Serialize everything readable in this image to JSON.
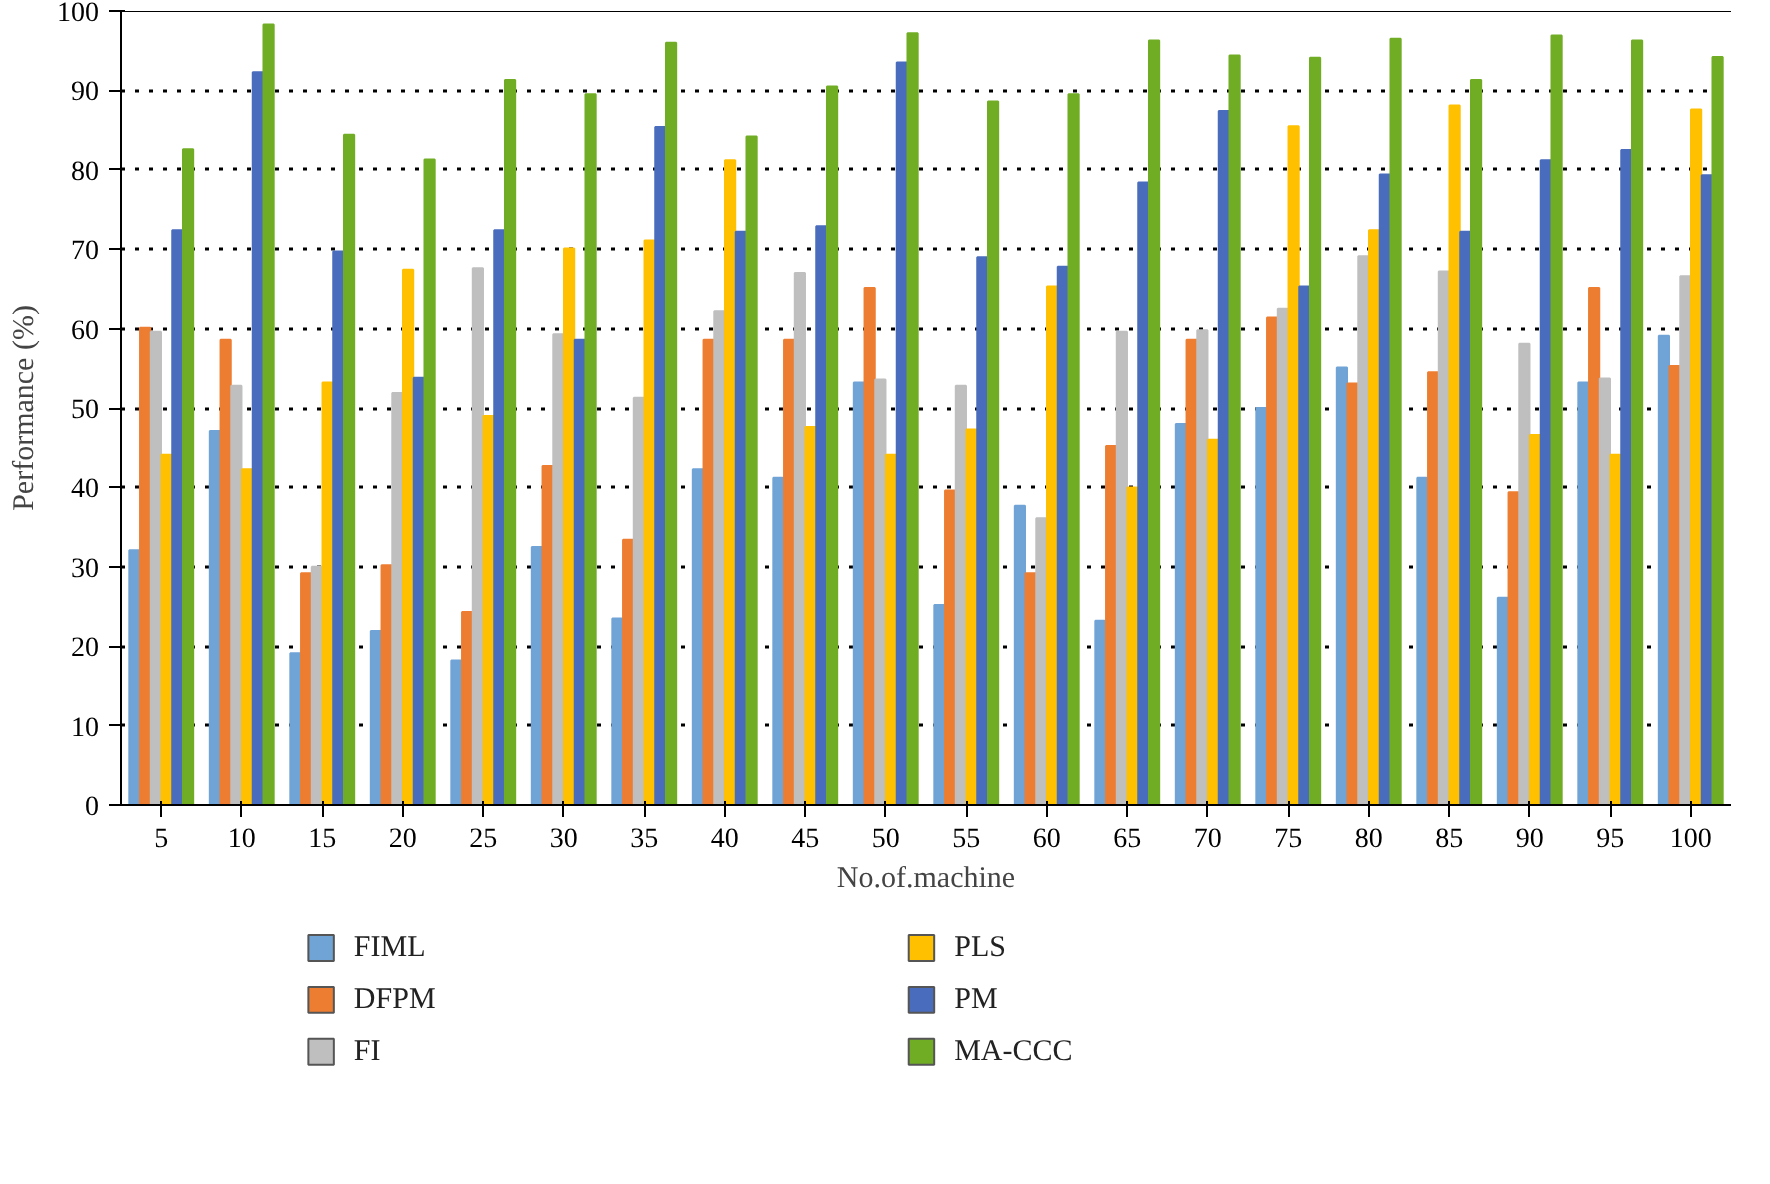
{
  "chart_data": {
    "type": "bar",
    "xlabel": "No.of.machine",
    "ylabel": "Performance (%)",
    "categories": [
      "5",
      "10",
      "15",
      "20",
      "25",
      "30",
      "35",
      "40",
      "45",
      "50",
      "55",
      "60",
      "65",
      "70",
      "75",
      "80",
      "85",
      "90",
      "95",
      "100"
    ],
    "ylim": [
      0,
      100
    ],
    "yticks": [
      0,
      10,
      20,
      30,
      40,
      50,
      60,
      70,
      80,
      90,
      100
    ],
    "grid": "y",
    "legend": "bottom",
    "series": [
      {
        "name": "FIML",
        "color": "#70a3d6",
        "values": [
          32.1,
          47.1,
          19.1,
          21.9,
          18.2,
          32.5,
          23.5,
          42.3,
          41.2,
          53.2,
          25.2,
          37.7,
          23.2,
          48,
          50,
          55.1,
          41.2,
          26.1,
          53.2,
          59.1
        ]
      },
      {
        "name": "DFPM",
        "color": "#ed7d31",
        "values": [
          60.1,
          58.6,
          29.2,
          30.2,
          24.3,
          42.7,
          33.4,
          58.6,
          58.6,
          65.1,
          39.6,
          29.2,
          45.2,
          58.6,
          61.4,
          53.1,
          54.5,
          39.4,
          65.1,
          55.3
        ]
      },
      {
        "name": "FI",
        "color": "#bfbfbf",
        "values": [
          59.6,
          52.8,
          30,
          51.9,
          67.6,
          59.3,
          51.3,
          62.2,
          67,
          53.6,
          52.8,
          36.1,
          59.6,
          59.8,
          62.5,
          69.1,
          67.2,
          58.1,
          53.7,
          66.6
        ]
      },
      {
        "name": "PLS",
        "color": "#ffc000",
        "values": [
          44.1,
          42.3,
          53.2,
          67.4,
          49,
          70.1,
          71.1,
          81.2,
          47.6,
          44.1,
          47.3,
          65.3,
          40,
          46,
          85.5,
          72.4,
          88.1,
          46.6,
          44.1,
          87.6
        ]
      },
      {
        "name": "PM",
        "color": "#4a6cbd",
        "values": [
          72.4,
          92.3,
          69.7,
          53.8,
          72.4,
          58.6,
          85.4,
          72.2,
          72.9,
          93.5,
          69,
          67.8,
          78.4,
          87.4,
          65.3,
          79.4,
          72.2,
          81.2,
          82.5,
          79.3
        ]
      },
      {
        "name": "MA-CCC",
        "color": "#70ad24",
        "values": [
          82.6,
          98.3,
          84.4,
          81.3,
          91.3,
          89.5,
          96,
          84.2,
          90.5,
          97.2,
          88.6,
          89.5,
          96.3,
          94.4,
          94.1,
          96.5,
          91.3,
          96.9,
          96.3,
          94.2
        ]
      }
    ]
  }
}
